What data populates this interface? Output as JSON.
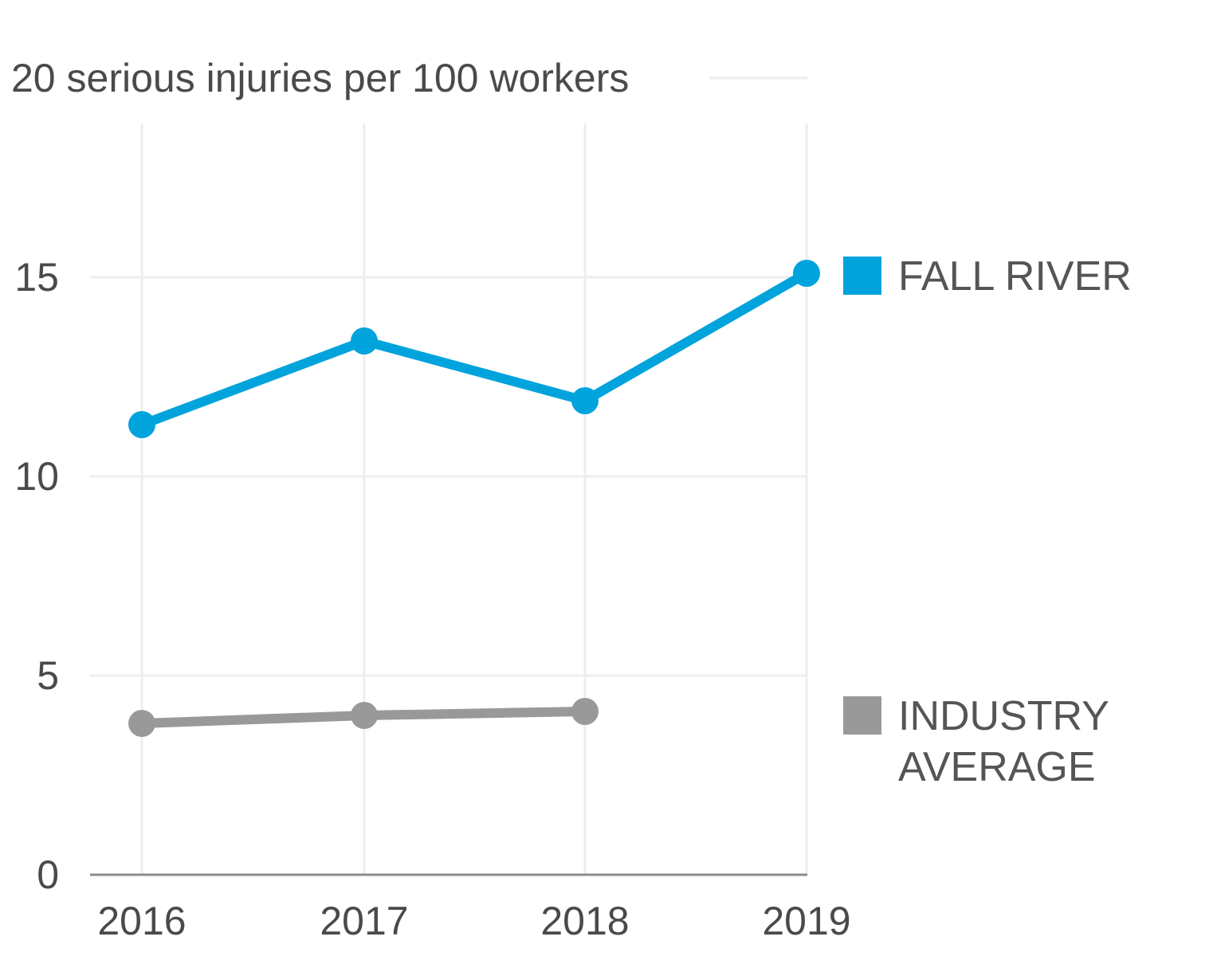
{
  "chart_data": {
    "type": "line",
    "ylabel": "serious injuries per 100 workers",
    "ylim": [
      0,
      20
    ],
    "yticks": [
      0,
      5,
      10,
      15,
      20
    ],
    "x": [
      "2016",
      "2017",
      "2018",
      "2019"
    ],
    "grid": true,
    "legend_placement": "right",
    "series": [
      {
        "name": "FALL RIVER",
        "color": "#00a3dc",
        "values": [
          11.3,
          13.4,
          11.9,
          15.1
        ]
      },
      {
        "name_lines": [
          "INDUSTRY",
          "AVERAGE"
        ],
        "color": "#999999",
        "values": [
          3.8,
          4.0,
          4.1,
          null
        ]
      }
    ]
  }
}
